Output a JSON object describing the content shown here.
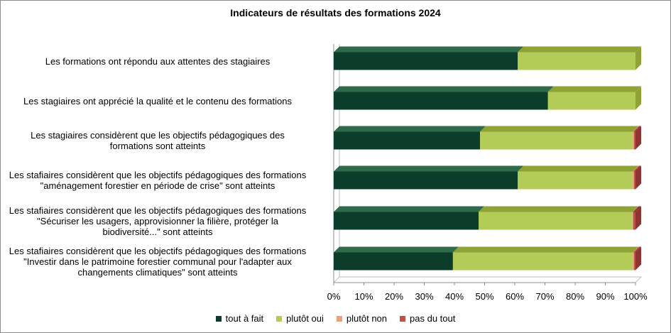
{
  "chart_data": {
    "type": "bar",
    "orientation": "horizontal",
    "stacked": true,
    "title": "Indicateurs  de résultats  des formations  2024",
    "xlim": [
      0,
      100
    ],
    "x_ticks": [
      "0%",
      "10%",
      "20%",
      "30%",
      "40%",
      "50%",
      "60%",
      "70%",
      "80%",
      "90%",
      "100%"
    ],
    "legend_position": "bottom",
    "categories": [
      "Les formations ont répondu aux attentes des stagiaires",
      "Les stagiaires ont apprécié la qualité et le contenu des formations",
      "Les stagiaires considèrent que les objectifs pédagogiques des\nformations sont atteints",
      "Les stafiaires considèrent que les objectifs pédagogiques des formations\n\"aménagement forestier en période de crise\" sont atteints",
      "Les stafiaires considèrent que les objectifs pédagogiques des formations\n\"Sécuriser les usagers, approvisionner la filière, protéger la\nbiodiversité...\" sont atteints",
      "Les stafiaires considèrent que les objectifs pédagogiques des formations\n\"Investir dans le patrimoine forestier communal pour l'adapter aux\nchangements climatiques\" sont atteints"
    ],
    "series": [
      {
        "name": "tout à fait",
        "color": "#0b3d2a",
        "top_color": "#2f6b4a",
        "values": [
          61,
          71,
          48.5,
          61,
          48,
          39.5
        ]
      },
      {
        "name": "plutôt oui",
        "color": "#b3cc57",
        "top_color": "#8ea236",
        "values": [
          39,
          29,
          50.5,
          38,
          51,
          59.5
        ]
      },
      {
        "name": "plutôt non",
        "color": "#f0a070",
        "top_color": "#c87d50",
        "values": [
          0,
          0,
          0.5,
          0.5,
          0.2,
          0.5
        ]
      },
      {
        "name": "pas du tout",
        "color": "#c0504d",
        "top_color": "#8c3432",
        "values": [
          0,
          0,
          0.5,
          0.5,
          0.8,
          0.5
        ]
      }
    ],
    "grid": false
  }
}
